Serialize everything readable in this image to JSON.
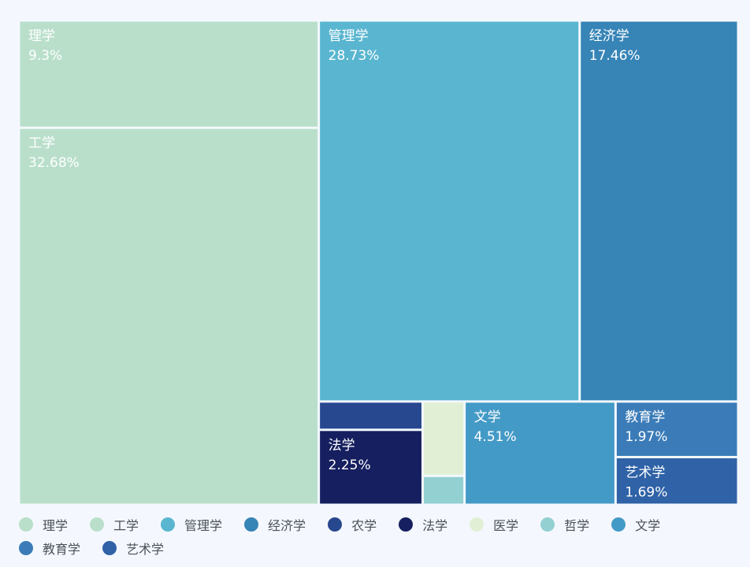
{
  "chart_data": {
    "type": "treemap",
    "legend_position": "bottom",
    "items": [
      {
        "name": "理学",
        "value": 9.3,
        "label": "9.3%",
        "color": "#b9dfcb"
      },
      {
        "name": "工学",
        "value": 32.68,
        "label": "32.68%",
        "color": "#b9dfcb"
      },
      {
        "name": "管理学",
        "value": 28.73,
        "label": "28.73%",
        "color": "#5ab6d0"
      },
      {
        "name": "经济学",
        "value": 17.46,
        "label": "17.46%",
        "color": "#3784b7"
      },
      {
        "name": "农学",
        "value": 0.85,
        "label": "",
        "color": "#27478f"
      },
      {
        "name": "法学",
        "value": 2.25,
        "label": "2.25%",
        "color": "#161f5f"
      },
      {
        "name": "医学",
        "value": 0.9,
        "label": "",
        "color": "#e1f0d4"
      },
      {
        "name": "哲学",
        "value": 0.35,
        "label": "",
        "color": "#93d0d2"
      },
      {
        "name": "文学",
        "value": 4.51,
        "label": "4.51%",
        "color": "#449ac6"
      },
      {
        "name": "教育学",
        "value": 1.97,
        "label": "1.97%",
        "color": "#3b7cb8"
      },
      {
        "name": "艺术学",
        "value": 1.69,
        "label": "1.69%",
        "color": "#2f62a6"
      }
    ]
  }
}
